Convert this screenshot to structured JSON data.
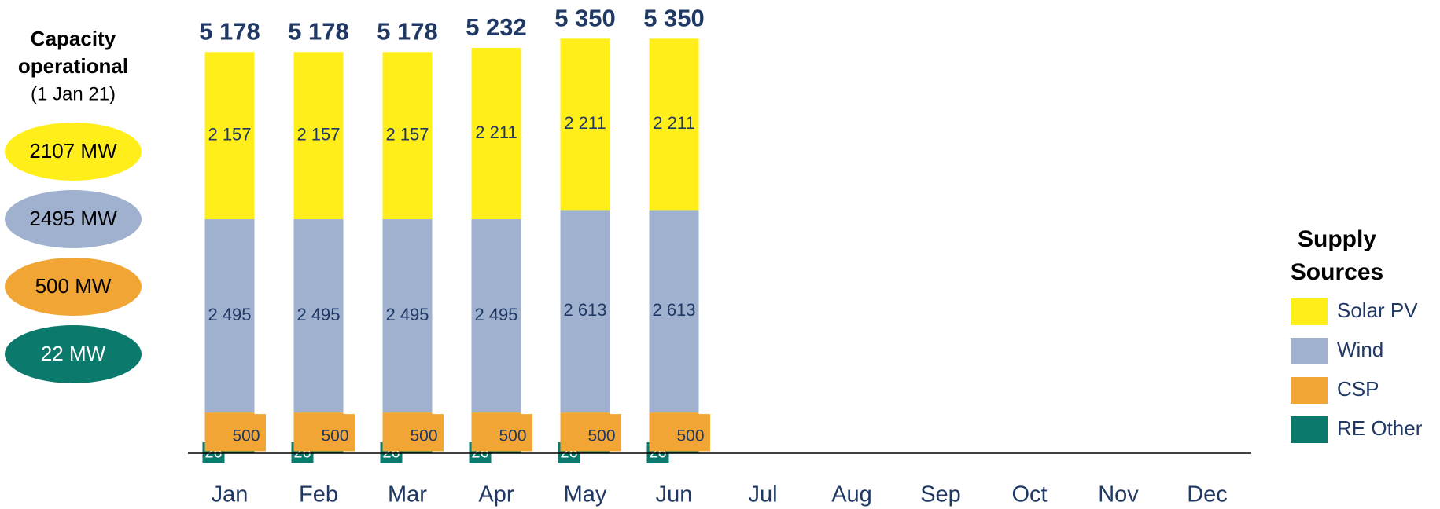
{
  "chart_data": {
    "type": "stacked_bar",
    "categories": [
      "Jan",
      "Feb",
      "Mar",
      "Apr",
      "May",
      "Jun",
      "Jul",
      "Aug",
      "Sep",
      "Oct",
      "Nov",
      "Dec"
    ],
    "series": [
      {
        "name": "RE Other",
        "color": "#0b7a6c",
        "values": [
          26,
          26,
          26,
          26,
          26,
          26,
          null,
          null,
          null,
          null,
          null,
          null
        ]
      },
      {
        "name": "CSP",
        "color": "#f0a535",
        "values": [
          500,
          500,
          500,
          500,
          500,
          500,
          null,
          null,
          null,
          null,
          null,
          null
        ]
      },
      {
        "name": "Wind",
        "color": "#9fb1cf",
        "values": [
          2495,
          2495,
          2495,
          2495,
          2613,
          2613,
          null,
          null,
          null,
          null,
          null,
          null
        ],
        "value_labels": [
          "2 495",
          "2 495",
          "2 495",
          "2 495",
          "2 613",
          "2 613",
          null,
          null,
          null,
          null,
          null,
          null
        ]
      },
      {
        "name": "Solar PV",
        "color": "#ffee1a",
        "values": [
          2157,
          2157,
          2157,
          2211,
          2211,
          2211,
          null,
          null,
          null,
          null,
          null,
          null
        ],
        "value_labels": [
          "2 157",
          "2 157",
          "2 157",
          "2 211",
          "2 211",
          "2 211",
          null,
          null,
          null,
          null,
          null,
          null
        ]
      }
    ],
    "totals": [
      5178,
      5178,
      5178,
      5232,
      5350,
      5350,
      null,
      null,
      null,
      null,
      null,
      null
    ],
    "total_labels": [
      "5 178",
      "5 178",
      "5 178",
      "5 232",
      "5 350",
      "5 350",
      null,
      null,
      null,
      null,
      null,
      null
    ],
    "ylim": [
      0,
      5850
    ],
    "legend_title": "Supply Sources",
    "legend_position": "right",
    "side_panel": {
      "title": "Capacity operational",
      "subtitle": "(1 Jan 21)",
      "items": [
        {
          "label": "2107 MW",
          "color": "#ffee1a"
        },
        {
          "label": "2495 MW",
          "color": "#9fb1cf"
        },
        {
          "label": "500 MW",
          "color": "#f0a535"
        },
        {
          "label": "22 MW",
          "color": "#0b7a6c"
        }
      ]
    }
  }
}
